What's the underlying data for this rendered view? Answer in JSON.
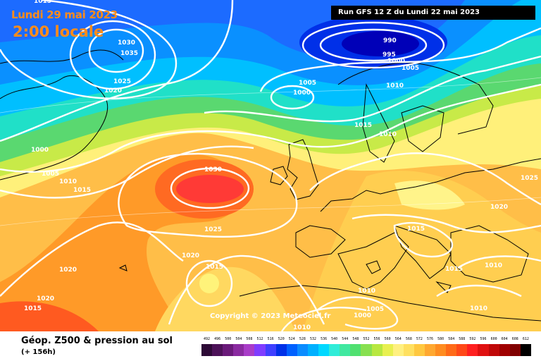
{
  "header": {
    "date": "Lundi 29 mai 2023",
    "local_time": "2:00 locale",
    "run": "Run GFS 12 Z du Lundi 22 mai 2023"
  },
  "copyright": "Copyright © 2023 Meteociel.fr",
  "legend": {
    "title": "Géop. Z500 & pression au sol",
    "subtitle": "(+ 156h)",
    "scale_values": [
      "492",
      "496",
      "500",
      "504",
      "508",
      "512",
      "516",
      "520",
      "524",
      "528",
      "532",
      "536",
      "540",
      "544",
      "548",
      "552",
      "556",
      "560",
      "564",
      "568",
      "572",
      "576",
      "580",
      "584",
      "588",
      "592",
      "596",
      "600",
      "604",
      "608",
      "612"
    ],
    "scale_colors": [
      "#2d0a36",
      "#4c1258",
      "#6a1a7a",
      "#8a2aa0",
      "#a93cc8",
      "#7f3cff",
      "#3f3fff",
      "#0030e8",
      "#0060ff",
      "#0a8cff",
      "#00b0ff",
      "#00d8ff",
      "#30ecd8",
      "#40e8a0",
      "#50e070",
      "#88e050",
      "#b8e840",
      "#e8f050",
      "#fff080",
      "#ffe060",
      "#ffc840",
      "#ffa830",
      "#ff8c20",
      "#ff6a18",
      "#ff4818",
      "#ff2020",
      "#e01010",
      "#c00808",
      "#a00000",
      "#800000",
      "#000000"
    ]
  },
  "isobars": [
    "1015",
    "1030",
    "1035",
    "1025",
    "1020",
    "990",
    "995",
    "1000",
    "1005",
    "1000",
    "1010",
    "1005",
    "1015",
    "1010",
    "1000",
    "1005",
    "1010",
    "1015",
    "1030",
    "1025",
    "1025",
    "1020",
    "1015",
    "1020",
    "1015",
    "1020",
    "1020",
    "1015",
    "1010",
    "1015",
    "1010",
    "1010",
    "1005",
    "1000",
    "1010",
    "1010"
  ]
}
